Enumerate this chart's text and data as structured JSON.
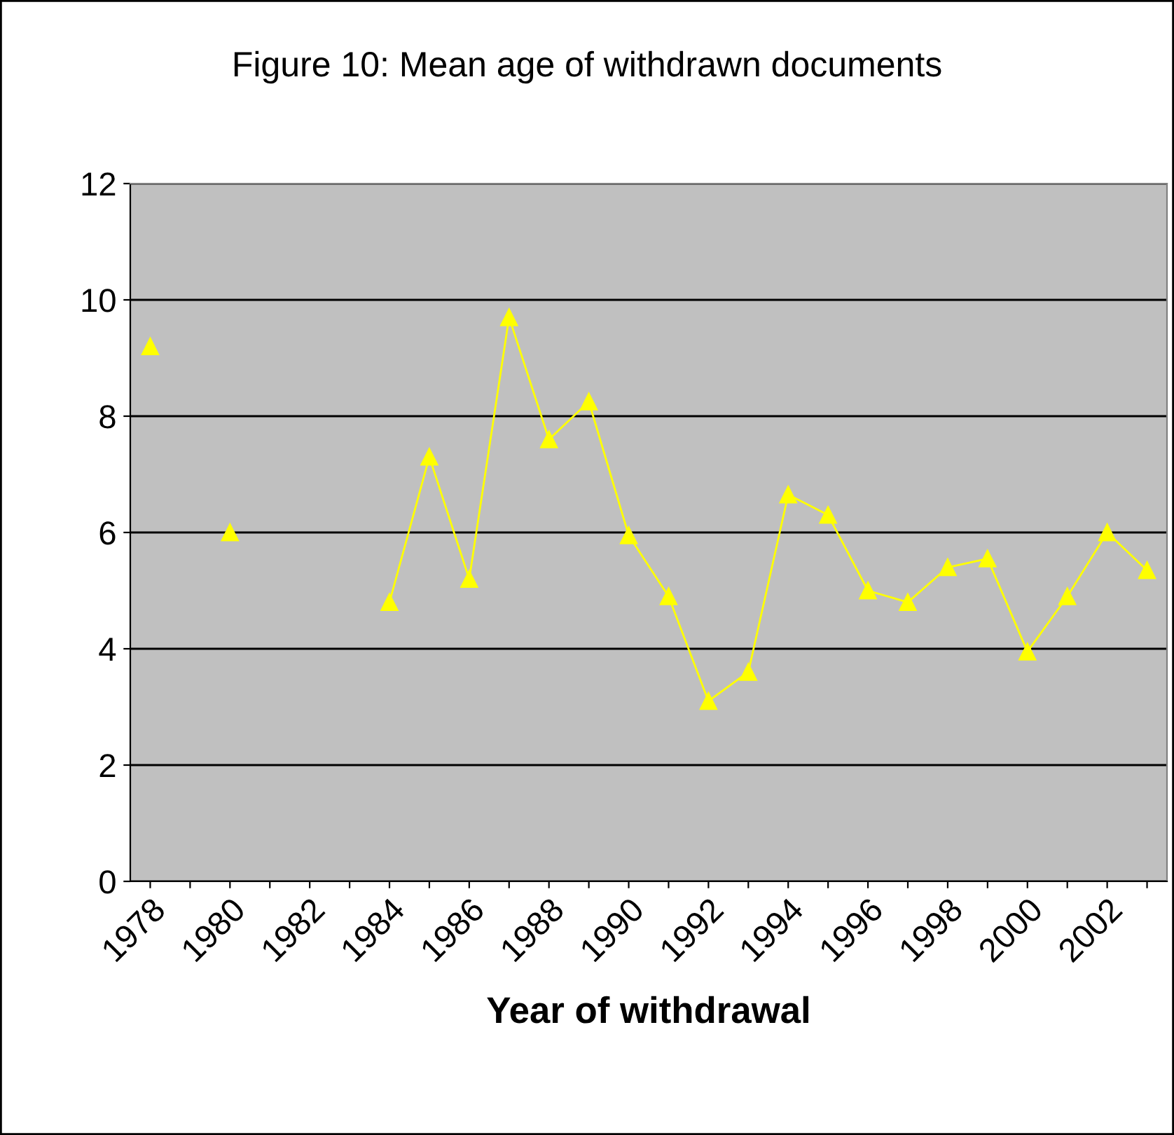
{
  "chart_data": {
    "type": "line",
    "title": "Figure 10: Mean age of withdrawn documents",
    "xlabel": "Year of withdrawal",
    "categories": [
      "1978",
      null,
      "1980",
      null,
      "1982",
      null,
      "1984",
      null,
      "1986",
      null,
      "1988",
      null,
      "1990",
      null,
      "1992",
      null,
      "1994",
      null,
      "1996",
      null,
      "1998",
      null,
      "2000",
      null,
      "2002",
      null
    ],
    "series": [
      {
        "color": "#ffff00",
        "values": [
          9.2,
          null,
          6.0,
          null,
          null,
          null,
          4.8,
          7.3,
          5.2,
          9.7,
          7.6,
          8.25,
          5.95,
          4.9,
          3.1,
          3.6,
          6.65,
          6.3,
          5.0,
          4.8,
          5.4,
          5.55,
          3.95,
          4.9,
          6.0,
          5.35
        ]
      }
    ],
    "ylim": [
      0,
      12
    ],
    "yticks": [
      0,
      2,
      4,
      6,
      8,
      10,
      12
    ],
    "grid": "y",
    "marker": "triangle",
    "line_style": "solid"
  }
}
